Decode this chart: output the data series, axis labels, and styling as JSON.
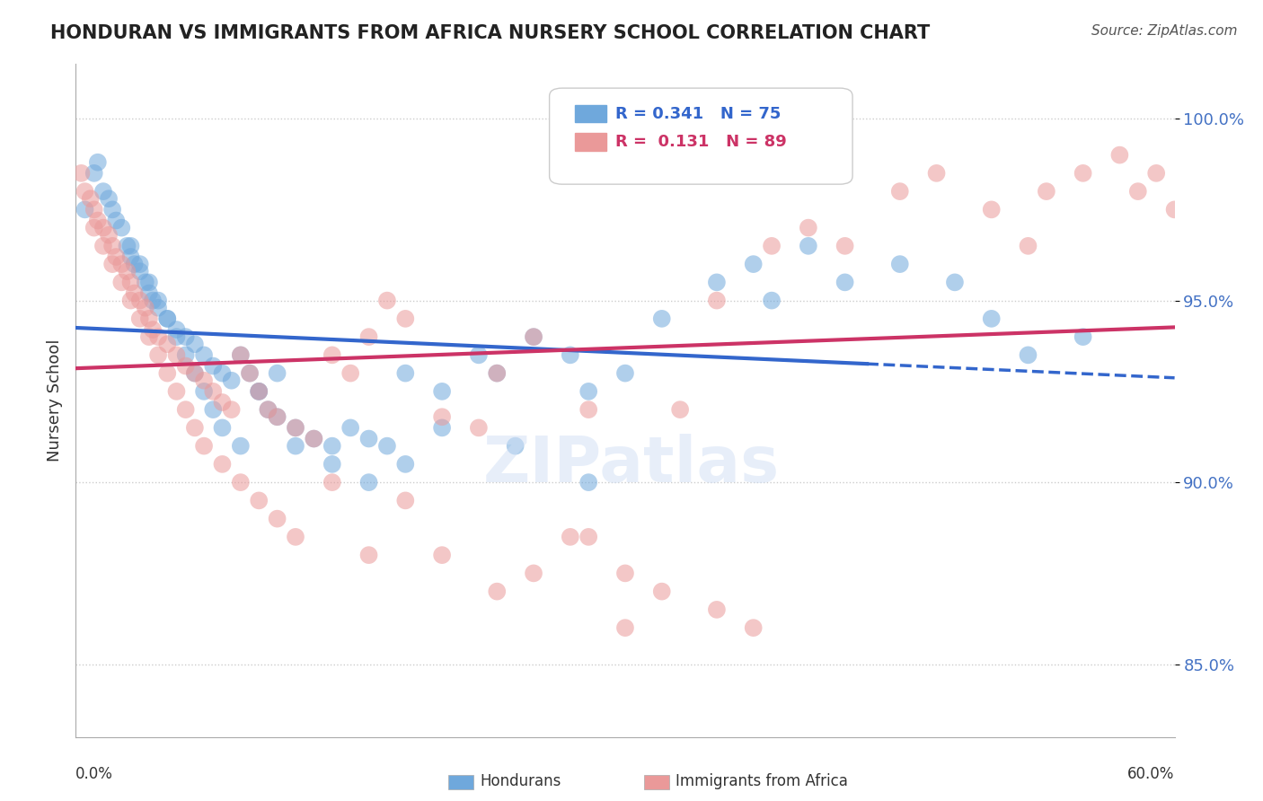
{
  "title": "HONDURAN VS IMMIGRANTS FROM AFRICA NURSERY SCHOOL CORRELATION CHART",
  "source": "Source: ZipAtlas.com",
  "ylabel": "Nursery School",
  "xmin": 0.0,
  "xmax": 60.0,
  "ymin": 83.0,
  "ymax": 101.5,
  "yticks": [
    85.0,
    90.0,
    95.0,
    100.0
  ],
  "ytick_labels": [
    "85.0%",
    "90.0%",
    "95.0%",
    "100.0%"
  ],
  "blue_color": "#6fa8dc",
  "pink_color": "#ea9999",
  "blue_line_color": "#3366cc",
  "pink_line_color": "#cc3366",
  "legend_R_blue": "R = 0.341",
  "legend_N_blue": "N = 75",
  "legend_R_pink": "R =  0.131",
  "legend_N_pink": "N = 89",
  "blue_scatter_x": [
    0.5,
    1.0,
    1.2,
    1.5,
    1.8,
    2.0,
    2.2,
    2.5,
    2.8,
    3.0,
    3.2,
    3.5,
    3.8,
    4.0,
    4.2,
    4.5,
    5.0,
    5.5,
    6.0,
    6.5,
    7.0,
    7.5,
    8.0,
    8.5,
    9.0,
    9.5,
    10.0,
    10.5,
    11.0,
    12.0,
    13.0,
    14.0,
    15.0,
    16.0,
    17.0,
    18.0,
    20.0,
    22.0,
    23.0,
    25.0,
    27.0,
    28.0,
    30.0,
    32.0,
    35.0,
    37.0,
    38.0,
    40.0,
    42.0,
    45.0,
    48.0,
    50.0,
    52.0,
    55.0,
    3.0,
    3.5,
    4.0,
    4.5,
    5.0,
    5.5,
    6.0,
    6.5,
    7.0,
    7.5,
    8.0,
    9.0,
    10.0,
    11.0,
    12.0,
    14.0,
    16.0,
    18.0,
    20.0,
    24.0,
    28.0
  ],
  "blue_scatter_y": [
    97.5,
    98.5,
    98.8,
    98.0,
    97.8,
    97.5,
    97.2,
    97.0,
    96.5,
    96.2,
    96.0,
    95.8,
    95.5,
    95.2,
    95.0,
    94.8,
    94.5,
    94.2,
    94.0,
    93.8,
    93.5,
    93.2,
    93.0,
    92.8,
    93.5,
    93.0,
    92.5,
    92.0,
    91.8,
    91.5,
    91.2,
    91.0,
    91.5,
    91.2,
    91.0,
    93.0,
    92.5,
    93.5,
    93.0,
    94.0,
    93.5,
    92.5,
    93.0,
    94.5,
    95.5,
    96.0,
    95.0,
    96.5,
    95.5,
    96.0,
    95.5,
    94.5,
    93.5,
    94.0,
    96.5,
    96.0,
    95.5,
    95.0,
    94.5,
    94.0,
    93.5,
    93.0,
    92.5,
    92.0,
    91.5,
    91.0,
    92.5,
    93.0,
    91.0,
    90.5,
    90.0,
    90.5,
    91.5,
    91.0,
    90.0
  ],
  "pink_scatter_x": [
    0.3,
    0.5,
    0.8,
    1.0,
    1.2,
    1.5,
    1.8,
    2.0,
    2.2,
    2.5,
    2.8,
    3.0,
    3.2,
    3.5,
    3.8,
    4.0,
    4.2,
    4.5,
    5.0,
    5.5,
    6.0,
    6.5,
    7.0,
    7.5,
    8.0,
    8.5,
    9.0,
    9.5,
    10.0,
    10.5,
    11.0,
    12.0,
    13.0,
    14.0,
    15.0,
    16.0,
    17.0,
    18.0,
    20.0,
    22.0,
    23.0,
    25.0,
    27.0,
    28.0,
    30.0,
    32.0,
    35.0,
    37.0,
    1.0,
    1.5,
    2.0,
    2.5,
    3.0,
    3.5,
    4.0,
    4.5,
    5.0,
    5.5,
    6.0,
    6.5,
    7.0,
    8.0,
    9.0,
    10.0,
    11.0,
    12.0,
    14.0,
    16.0,
    18.0,
    20.0,
    23.0,
    25.0,
    28.0,
    30.0,
    33.0,
    35.0,
    38.0,
    40.0,
    42.0,
    45.0,
    47.0,
    50.0,
    52.0,
    53.0,
    55.0,
    57.0,
    58.0,
    59.0,
    60.0
  ],
  "pink_scatter_y": [
    98.5,
    98.0,
    97.8,
    97.5,
    97.2,
    97.0,
    96.8,
    96.5,
    96.2,
    96.0,
    95.8,
    95.5,
    95.2,
    95.0,
    94.8,
    94.5,
    94.2,
    94.0,
    93.8,
    93.5,
    93.2,
    93.0,
    92.8,
    92.5,
    92.2,
    92.0,
    93.5,
    93.0,
    92.5,
    92.0,
    91.8,
    91.5,
    91.2,
    93.5,
    93.0,
    94.0,
    95.0,
    94.5,
    91.8,
    91.5,
    93.0,
    94.0,
    88.5,
    92.0,
    87.5,
    87.0,
    86.5,
    86.0,
    97.0,
    96.5,
    96.0,
    95.5,
    95.0,
    94.5,
    94.0,
    93.5,
    93.0,
    92.5,
    92.0,
    91.5,
    91.0,
    90.5,
    90.0,
    89.5,
    89.0,
    88.5,
    90.0,
    88.0,
    89.5,
    88.0,
    87.0,
    87.5,
    88.5,
    86.0,
    92.0,
    95.0,
    96.5,
    97.0,
    96.5,
    98.0,
    98.5,
    97.5,
    96.5,
    98.0,
    98.5,
    99.0,
    98.0,
    98.5,
    97.5
  ]
}
